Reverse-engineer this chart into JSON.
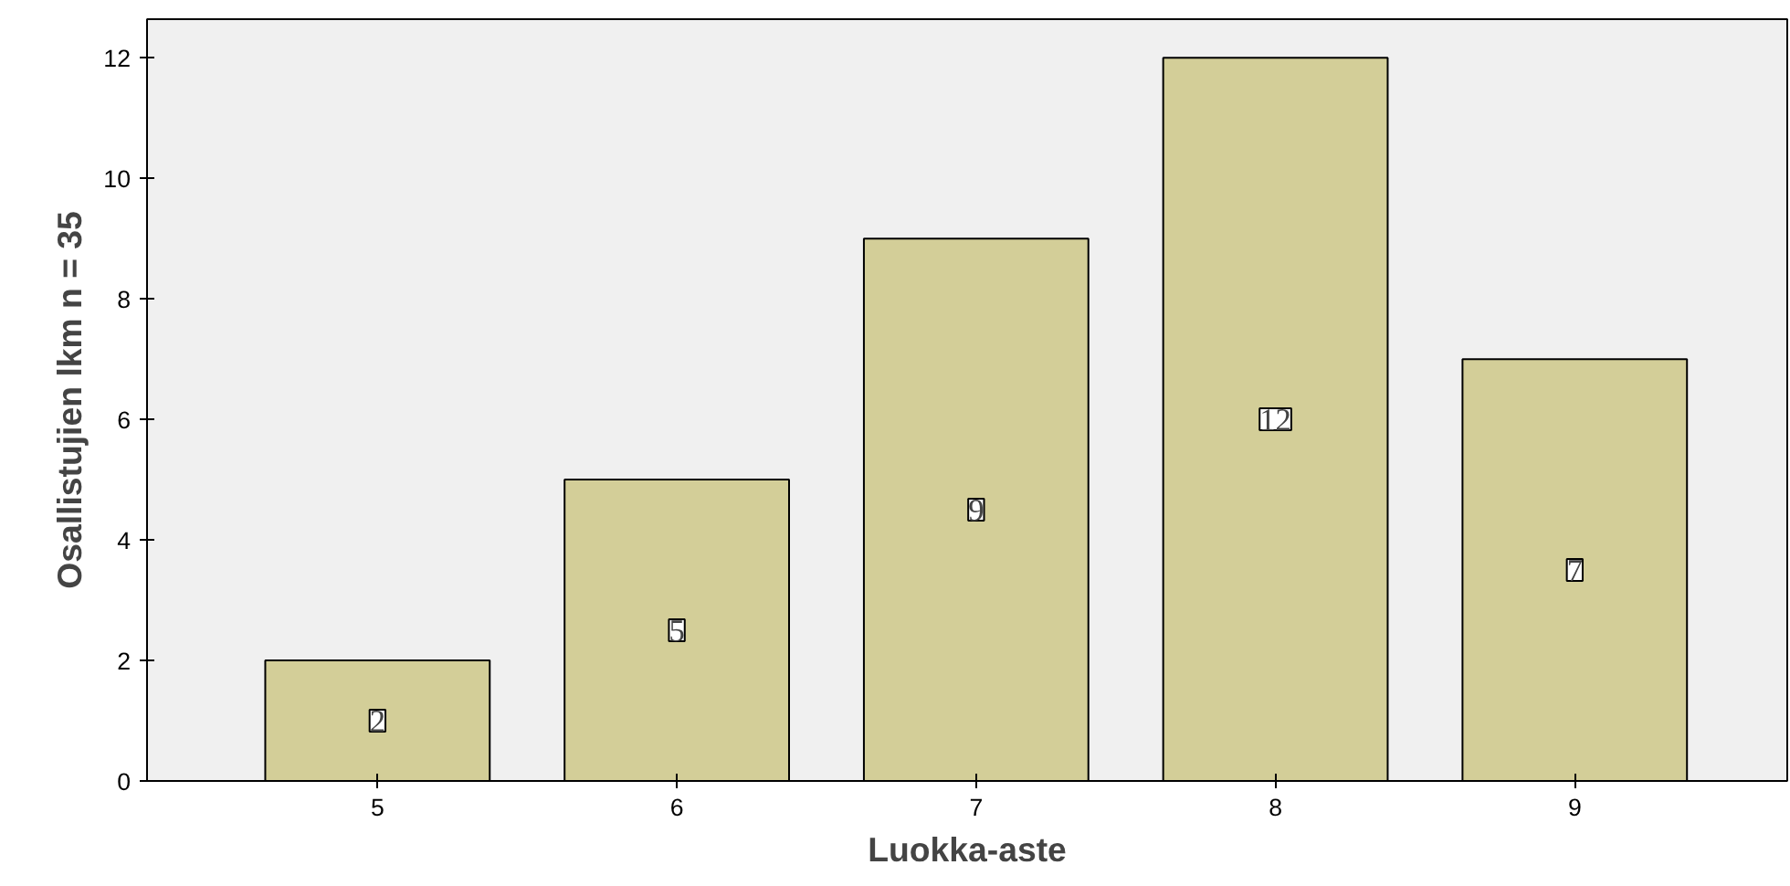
{
  "chart_data": {
    "type": "bar",
    "categories": [
      "5",
      "6",
      "7",
      "8",
      "9"
    ],
    "values": [
      2,
      5,
      9,
      12,
      7
    ],
    "color": "#d3ce98",
    "xlabel": "Luokka-aste",
    "ylabel": "Osallistujien lkm n = 35",
    "ylim": [
      0,
      12.64
    ],
    "yticks": [
      0,
      2,
      4,
      6,
      8,
      10,
      12
    ],
    "grid": false,
    "data_labels": true
  }
}
